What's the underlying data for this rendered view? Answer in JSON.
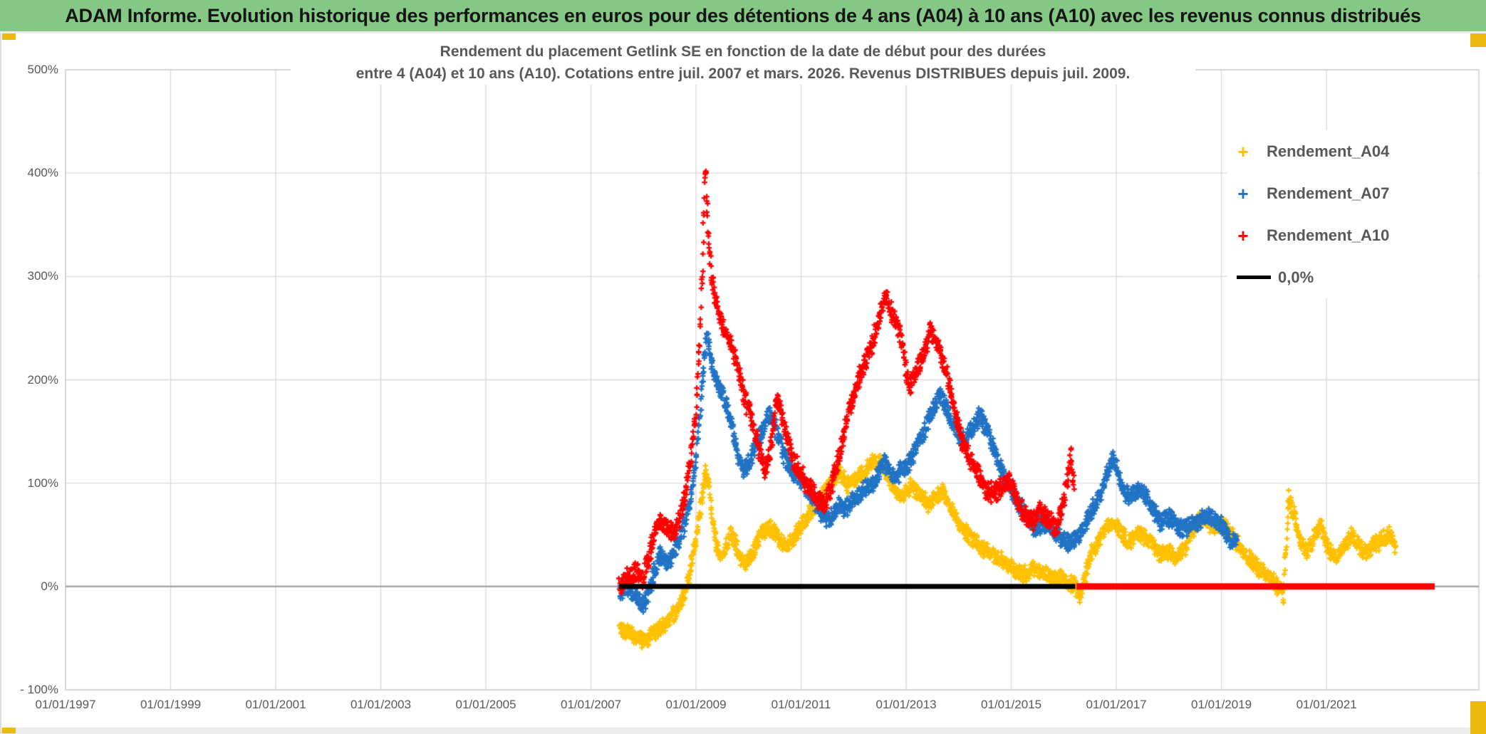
{
  "header": {
    "title": "ADAM Informe. Evolution historique des performances en euros pour des détentions de 4 ans (A04) à 10 ans (A10) avec les revenus connus distribués",
    "bg_color": "#85C785"
  },
  "accent_color": "#EDB90E",
  "chart_data": {
    "type": "scatter",
    "marker_shape": "plus",
    "title_line1": "Rendement du placement Getlink SE en fonction de la date de début pour des durées",
    "title_line2": "entre 4 (A04) et 10 ans (A10). Cotations entre juil. 2007 et mars. 2026. Revenus DISTRIBUES depuis juil. 2009.",
    "x_axis": {
      "min": 1997.0,
      "max": 2023.9,
      "tick_years": [
        1997,
        1999,
        2001,
        2003,
        2005,
        2007,
        2009,
        2011,
        2013,
        2015,
        2017,
        2019,
        2021
      ],
      "tick_labels": [
        "01/01/1997",
        "01/01/1999",
        "01/01/2001",
        "01/01/2003",
        "01/01/2005",
        "01/01/2007",
        "01/01/2009",
        "01/01/2011",
        "01/01/2013",
        "01/01/2015",
        "01/01/2017",
        "01/01/2019",
        "01/01/2021"
      ]
    },
    "y_axis": {
      "min": -100,
      "max": 500,
      "unit": "%",
      "tick_values": [
        500,
        400,
        300,
        200,
        100,
        0,
        -100
      ],
      "tick_labels": [
        "500%",
        "400%",
        "300%",
        "200%",
        "100%",
        "0%",
        "- 100%"
      ]
    },
    "grid_color": "#D9D9D9",
    "zero_axis_color": "#A6A6A6",
    "legend": {
      "position": "top-right",
      "items": [
        {
          "label": "Rendement_A04",
          "marker": "plus",
          "color": "#FFC000"
        },
        {
          "label": "Rendement_A07",
          "marker": "plus",
          "color": "#1F72C4"
        },
        {
          "label": "Rendement_A10",
          "marker": "plus",
          "color": "#FE0000"
        },
        {
          "label": "0,0%",
          "marker": "line",
          "color": "#000000"
        }
      ]
    },
    "series": [
      {
        "name": "Rendement_A04",
        "color": "#FFC000",
        "jitter_pct": 6,
        "points": [
          [
            2007.54,
            -38
          ],
          [
            2007.7,
            -44
          ],
          [
            2007.9,
            -50
          ],
          [
            2008.05,
            -52
          ],
          [
            2008.2,
            -45
          ],
          [
            2008.35,
            -38
          ],
          [
            2008.5,
            -32
          ],
          [
            2008.65,
            -22
          ],
          [
            2008.8,
            -5
          ],
          [
            2008.9,
            20
          ],
          [
            2009.0,
            45
          ],
          [
            2009.1,
            80
          ],
          [
            2009.18,
            112
          ],
          [
            2009.25,
            95
          ],
          [
            2009.35,
            50
          ],
          [
            2009.45,
            28
          ],
          [
            2009.55,
            35
          ],
          [
            2009.65,
            50
          ],
          [
            2009.75,
            42
          ],
          [
            2009.85,
            28
          ],
          [
            2009.95,
            22
          ],
          [
            2010.1,
            35
          ],
          [
            2010.25,
            52
          ],
          [
            2010.4,
            58
          ],
          [
            2010.55,
            48
          ],
          [
            2010.7,
            38
          ],
          [
            2010.85,
            45
          ],
          [
            2011.0,
            58
          ],
          [
            2011.15,
            70
          ],
          [
            2011.3,
            80
          ],
          [
            2011.45,
            95
          ],
          [
            2011.6,
            105
          ],
          [
            2011.75,
            108
          ],
          [
            2011.9,
            98
          ],
          [
            2012.05,
            105
          ],
          [
            2012.2,
            112
          ],
          [
            2012.35,
            120
          ],
          [
            2012.5,
            122
          ],
          [
            2012.65,
            108
          ],
          [
            2012.8,
            92
          ],
          [
            2012.95,
            88
          ],
          [
            2013.1,
            98
          ],
          [
            2013.25,
            88
          ],
          [
            2013.4,
            80
          ],
          [
            2013.55,
            85
          ],
          [
            2013.7,
            92
          ],
          [
            2013.85,
            75
          ],
          [
            2014.0,
            60
          ],
          [
            2014.2,
            50
          ],
          [
            2014.35,
            42
          ],
          [
            2014.5,
            35
          ],
          [
            2014.7,
            28
          ],
          [
            2014.9,
            22
          ],
          [
            2015.1,
            15
          ],
          [
            2015.25,
            12
          ],
          [
            2015.4,
            18
          ],
          [
            2015.55,
            14
          ],
          [
            2015.7,
            10
          ],
          [
            2015.85,
            6
          ],
          [
            2016.0,
            8
          ],
          [
            2016.1,
            2
          ],
          [
            2016.2,
            5
          ],
          [
            2016.3,
            -15
          ],
          [
            2016.4,
            10
          ],
          [
            2016.5,
            30
          ],
          [
            2016.65,
            45
          ],
          [
            2016.8,
            58
          ],
          [
            2016.95,
            62
          ],
          [
            2017.1,
            50
          ],
          [
            2017.25,
            42
          ],
          [
            2017.4,
            52
          ],
          [
            2017.55,
            48
          ],
          [
            2017.7,
            40
          ],
          [
            2017.85,
            30
          ],
          [
            2018.0,
            35
          ],
          [
            2018.15,
            28
          ],
          [
            2018.3,
            35
          ],
          [
            2018.45,
            52
          ],
          [
            2018.6,
            68
          ],
          [
            2018.75,
            60
          ],
          [
            2018.9,
            58
          ],
          [
            2019.05,
            60
          ],
          [
            2019.2,
            50
          ],
          [
            2019.35,
            38
          ],
          [
            2019.5,
            28
          ],
          [
            2019.65,
            20
          ],
          [
            2019.8,
            14
          ],
          [
            2019.95,
            8
          ],
          [
            2020.1,
            -2
          ],
          [
            2020.18,
            -10
          ],
          [
            2020.28,
            88
          ],
          [
            2020.38,
            68
          ],
          [
            2020.5,
            45
          ],
          [
            2020.65,
            32
          ],
          [
            2020.8,
            55
          ],
          [
            2020.9,
            60
          ],
          [
            2021.0,
            40
          ],
          [
            2021.15,
            28
          ],
          [
            2021.3,
            35
          ],
          [
            2021.45,
            50
          ],
          [
            2021.6,
            42
          ],
          [
            2021.75,
            32
          ],
          [
            2021.9,
            40
          ],
          [
            2022.05,
            45
          ],
          [
            2022.2,
            52
          ],
          [
            2022.32,
            38
          ]
        ]
      },
      {
        "name": "Rendement_A07",
        "color": "#1F72C4",
        "jitter_pct": 7,
        "points": [
          [
            2007.54,
            -5
          ],
          [
            2007.7,
            0
          ],
          [
            2007.85,
            -8
          ],
          [
            2008.0,
            -18
          ],
          [
            2008.15,
            5
          ],
          [
            2008.3,
            30
          ],
          [
            2008.45,
            22
          ],
          [
            2008.6,
            35
          ],
          [
            2008.75,
            55
          ],
          [
            2008.9,
            85
          ],
          [
            2009.0,
            125
          ],
          [
            2009.1,
            185
          ],
          [
            2009.2,
            245
          ],
          [
            2009.3,
            215
          ],
          [
            2009.4,
            195
          ],
          [
            2009.5,
            190
          ],
          [
            2009.6,
            170
          ],
          [
            2009.7,
            150
          ],
          [
            2009.8,
            128
          ],
          [
            2009.9,
            112
          ],
          [
            2010.0,
            118
          ],
          [
            2010.1,
            132
          ],
          [
            2010.25,
            150
          ],
          [
            2010.4,
            168
          ],
          [
            2010.5,
            155
          ],
          [
            2010.65,
            132
          ],
          [
            2010.8,
            112
          ],
          [
            2010.95,
            105
          ],
          [
            2011.1,
            95
          ],
          [
            2011.25,
            82
          ],
          [
            2011.4,
            70
          ],
          [
            2011.55,
            65
          ],
          [
            2011.7,
            80
          ],
          [
            2011.85,
            75
          ],
          [
            2012.0,
            85
          ],
          [
            2012.15,
            92
          ],
          [
            2012.3,
            98
          ],
          [
            2012.45,
            108
          ],
          [
            2012.6,
            120
          ],
          [
            2012.75,
            105
          ],
          [
            2012.9,
            112
          ],
          [
            2013.05,
            118
          ],
          [
            2013.2,
            135
          ],
          [
            2013.35,
            152
          ],
          [
            2013.5,
            170
          ],
          [
            2013.65,
            188
          ],
          [
            2013.8,
            168
          ],
          [
            2013.95,
            150
          ],
          [
            2014.1,
            140
          ],
          [
            2014.25,
            152
          ],
          [
            2014.4,
            165
          ],
          [
            2014.55,
            150
          ],
          [
            2014.7,
            128
          ],
          [
            2014.85,
            108
          ],
          [
            2015.0,
            95
          ],
          [
            2015.15,
            80
          ],
          [
            2015.3,
            65
          ],
          [
            2015.45,
            55
          ],
          [
            2015.6,
            62
          ],
          [
            2015.75,
            55
          ],
          [
            2015.9,
            48
          ],
          [
            2016.05,
            42
          ],
          [
            2016.2,
            46
          ],
          [
            2016.35,
            55
          ],
          [
            2016.5,
            70
          ],
          [
            2016.65,
            85
          ],
          [
            2016.8,
            105
          ],
          [
            2016.92,
            125
          ],
          [
            2017.0,
            115
          ],
          [
            2017.1,
            95
          ],
          [
            2017.25,
            85
          ],
          [
            2017.4,
            95
          ],
          [
            2017.55,
            90
          ],
          [
            2017.7,
            75
          ],
          [
            2017.85,
            62
          ],
          [
            2018.0,
            66
          ],
          [
            2018.15,
            58
          ],
          [
            2018.3,
            55
          ],
          [
            2018.45,
            60
          ],
          [
            2018.6,
            64
          ],
          [
            2018.75,
            68
          ],
          [
            2018.9,
            64
          ],
          [
            2019.05,
            55
          ],
          [
            2019.2,
            45
          ],
          [
            2019.3,
            40
          ]
        ]
      },
      {
        "name": "Rendement_A10",
        "color": "#FE0000",
        "jitter_pct": 8,
        "points": [
          [
            2007.54,
            2
          ],
          [
            2007.7,
            8
          ],
          [
            2007.85,
            14
          ],
          [
            2008.0,
            8
          ],
          [
            2008.15,
            40
          ],
          [
            2008.3,
            65
          ],
          [
            2008.45,
            55
          ],
          [
            2008.6,
            52
          ],
          [
            2008.7,
            70
          ],
          [
            2008.8,
            92
          ],
          [
            2008.9,
            125
          ],
          [
            2009.0,
            170
          ],
          [
            2009.07,
            240
          ],
          [
            2009.13,
            320
          ],
          [
            2009.18,
            408
          ],
          [
            2009.24,
            335
          ],
          [
            2009.3,
            295
          ],
          [
            2009.4,
            272
          ],
          [
            2009.5,
            252
          ],
          [
            2009.6,
            246
          ],
          [
            2009.7,
            226
          ],
          [
            2009.8,
            212
          ],
          [
            2009.9,
            188
          ],
          [
            2010.0,
            172
          ],
          [
            2010.1,
            152
          ],
          [
            2010.2,
            132
          ],
          [
            2010.3,
            112
          ],
          [
            2010.4,
            128
          ],
          [
            2010.55,
            182
          ],
          [
            2010.7,
            152
          ],
          [
            2010.85,
            122
          ],
          [
            2011.0,
            110
          ],
          [
            2011.15,
            96
          ],
          [
            2011.3,
            86
          ],
          [
            2011.45,
            80
          ],
          [
            2011.6,
            100
          ],
          [
            2011.75,
            130
          ],
          [
            2011.9,
            168
          ],
          [
            2012.0,
            185
          ],
          [
            2012.15,
            208
          ],
          [
            2012.3,
            228
          ],
          [
            2012.45,
            250
          ],
          [
            2012.6,
            285
          ],
          [
            2012.75,
            262
          ],
          [
            2012.9,
            242
          ],
          [
            2013.05,
            192
          ],
          [
            2013.2,
            210
          ],
          [
            2013.35,
            225
          ],
          [
            2013.45,
            248
          ],
          [
            2013.6,
            232
          ],
          [
            2013.75,
            212
          ],
          [
            2013.9,
            175
          ],
          [
            2014.05,
            145
          ],
          [
            2014.2,
            125
          ],
          [
            2014.35,
            110
          ],
          [
            2014.5,
            96
          ],
          [
            2014.65,
            90
          ],
          [
            2014.8,
            96
          ],
          [
            2014.95,
            104
          ],
          [
            2015.1,
            86
          ],
          [
            2015.25,
            70
          ],
          [
            2015.4,
            62
          ],
          [
            2015.55,
            74
          ],
          [
            2015.7,
            64
          ],
          [
            2015.85,
            56
          ],
          [
            2015.95,
            72
          ],
          [
            2016.05,
            95
          ],
          [
            2016.13,
            126
          ],
          [
            2016.2,
            96
          ]
        ]
      }
    ],
    "zero_lines": [
      {
        "series": "0,0%",
        "color": "#000000",
        "value": 0,
        "x_from": 2007.54,
        "x_to": 2016.22,
        "stroke": 7
      },
      {
        "series": "Rendement_A10",
        "color": "#FE0000",
        "value": 0,
        "x_from": 2016.24,
        "x_to": 2023.06,
        "stroke": 9
      }
    ]
  }
}
